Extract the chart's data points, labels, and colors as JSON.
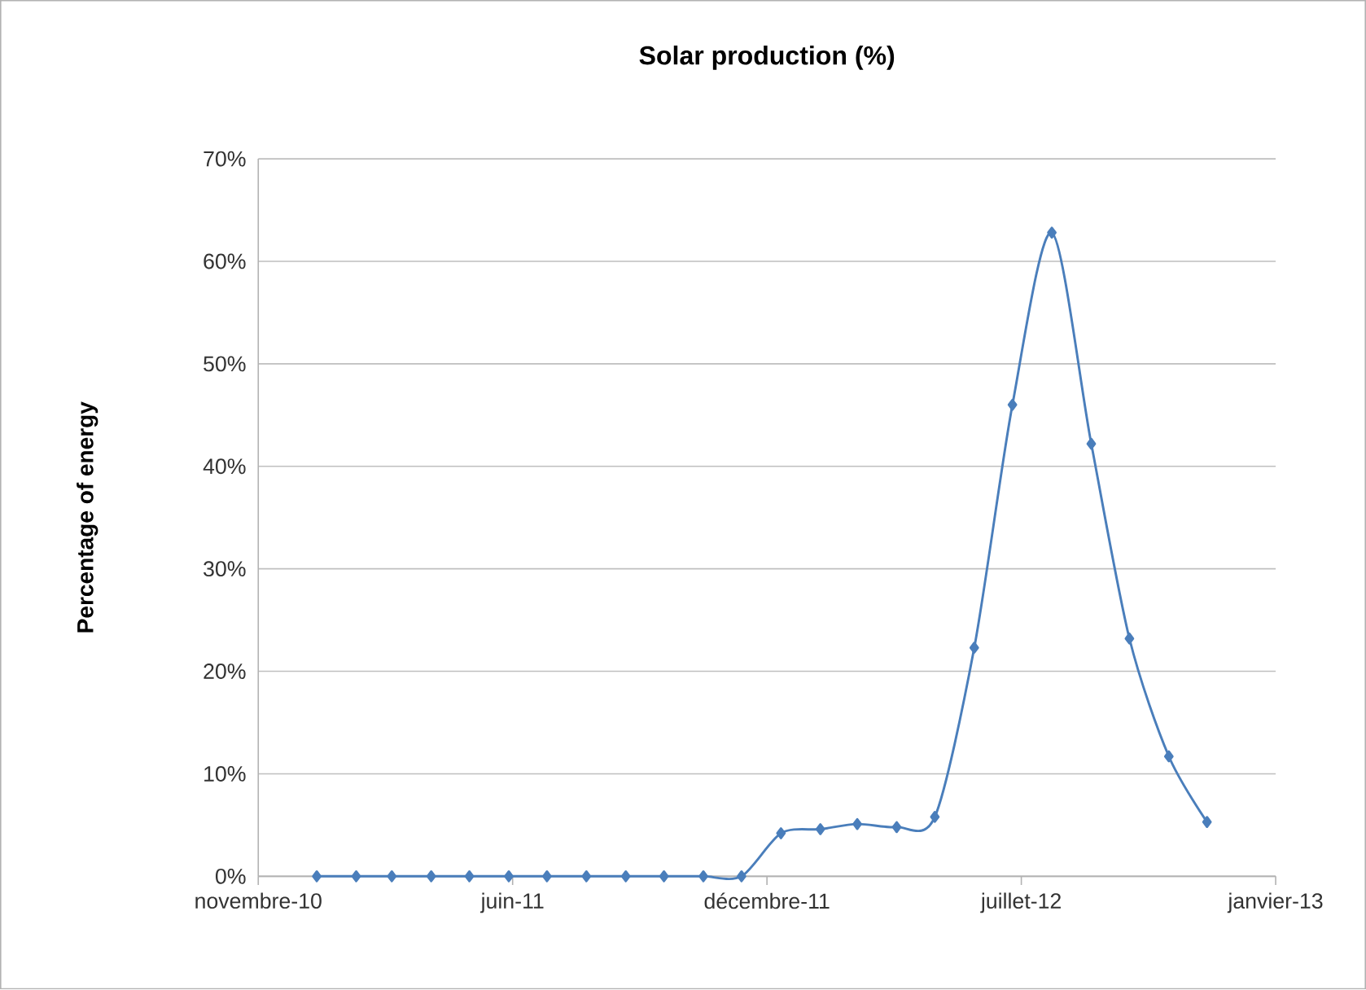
{
  "chart_data": {
    "type": "line",
    "title": "Solar production (%)",
    "ylabel": "Percentage of energy",
    "x": [
      "2011-01-01",
      "2011-02-01",
      "2011-03-01",
      "2011-04-01",
      "2011-05-01",
      "2011-06-01",
      "2011-07-01",
      "2011-08-01",
      "2011-09-01",
      "2011-10-01",
      "2011-11-01",
      "2011-12-01",
      "2012-01-01",
      "2012-02-01",
      "2012-03-01",
      "2012-04-01",
      "2012-05-01",
      "2012-06-01",
      "2012-07-01",
      "2012-08-01",
      "2012-09-01",
      "2012-10-01",
      "2012-11-01",
      "2012-12-01"
    ],
    "values": [
      0,
      0,
      0,
      0,
      0,
      0,
      0,
      0,
      0,
      0,
      0,
      0,
      4.2,
      4.6,
      5.1,
      4.8,
      5.8,
      22.3,
      46.0,
      62.8,
      42.2,
      23.2,
      11.7,
      5.3
    ],
    "color": "#4a7ebb",
    "marker": "diamond",
    "grid": "y",
    "xlim": [
      "2010-11-16",
      "2013-01-24"
    ],
    "xticks": [
      {
        "value": "2010-11-16",
        "label": "novembre-10"
      },
      {
        "value": "2011-06-04",
        "label": "juin-11"
      },
      {
        "value": "2011-12-21",
        "label": "décembre-11"
      },
      {
        "value": "2012-07-08",
        "label": "juillet-12"
      },
      {
        "value": "2013-01-24",
        "label": "janvier-13"
      }
    ],
    "ylim": [
      0,
      70
    ],
    "yticks": [
      {
        "value": 0,
        "label": "0%"
      },
      {
        "value": 10,
        "label": "10%"
      },
      {
        "value": 20,
        "label": "20%"
      },
      {
        "value": 30,
        "label": "30%"
      },
      {
        "value": 40,
        "label": "40%"
      },
      {
        "value": 50,
        "label": "50%"
      },
      {
        "value": 60,
        "label": "60%"
      },
      {
        "value": 70,
        "label": "70%"
      }
    ]
  }
}
